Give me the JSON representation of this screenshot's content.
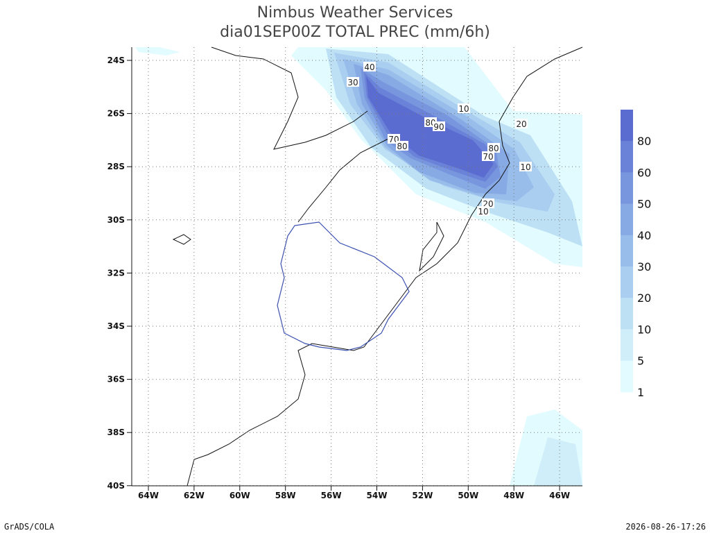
{
  "header": {
    "title": "Nimbus Weather Services",
    "subtitle": "dia01SEP00Z TOTAL PREC (mm/6h)"
  },
  "map": {
    "lat_labels": [
      "24S",
      "26S",
      "28S",
      "30S",
      "32S",
      "34S",
      "36S",
      "38S",
      "40S"
    ],
    "lon_labels": [
      "64W",
      "62W",
      "60W",
      "58W",
      "56W",
      "54W",
      "52W",
      "50W",
      "48W",
      "46W"
    ],
    "contour_labels": [
      "40",
      "30",
      "10",
      "80",
      "90",
      "70",
      "80",
      "70",
      "10",
      "80",
      "20",
      "20",
      "10"
    ]
  },
  "colorbar": {
    "labels": [
      80,
      60,
      50,
      40,
      30,
      20,
      10,
      5,
      1
    ],
    "colors": [
      "#5a6cd0",
      "#6a82d8",
      "#7896de",
      "#87a9e4",
      "#98bdea",
      "#aacef0",
      "#bde0f5",
      "#cfeefa",
      "#e2fbff"
    ]
  },
  "footer": {
    "left": "GrADS/COLA",
    "right": "2026-08-26-17:26"
  }
}
